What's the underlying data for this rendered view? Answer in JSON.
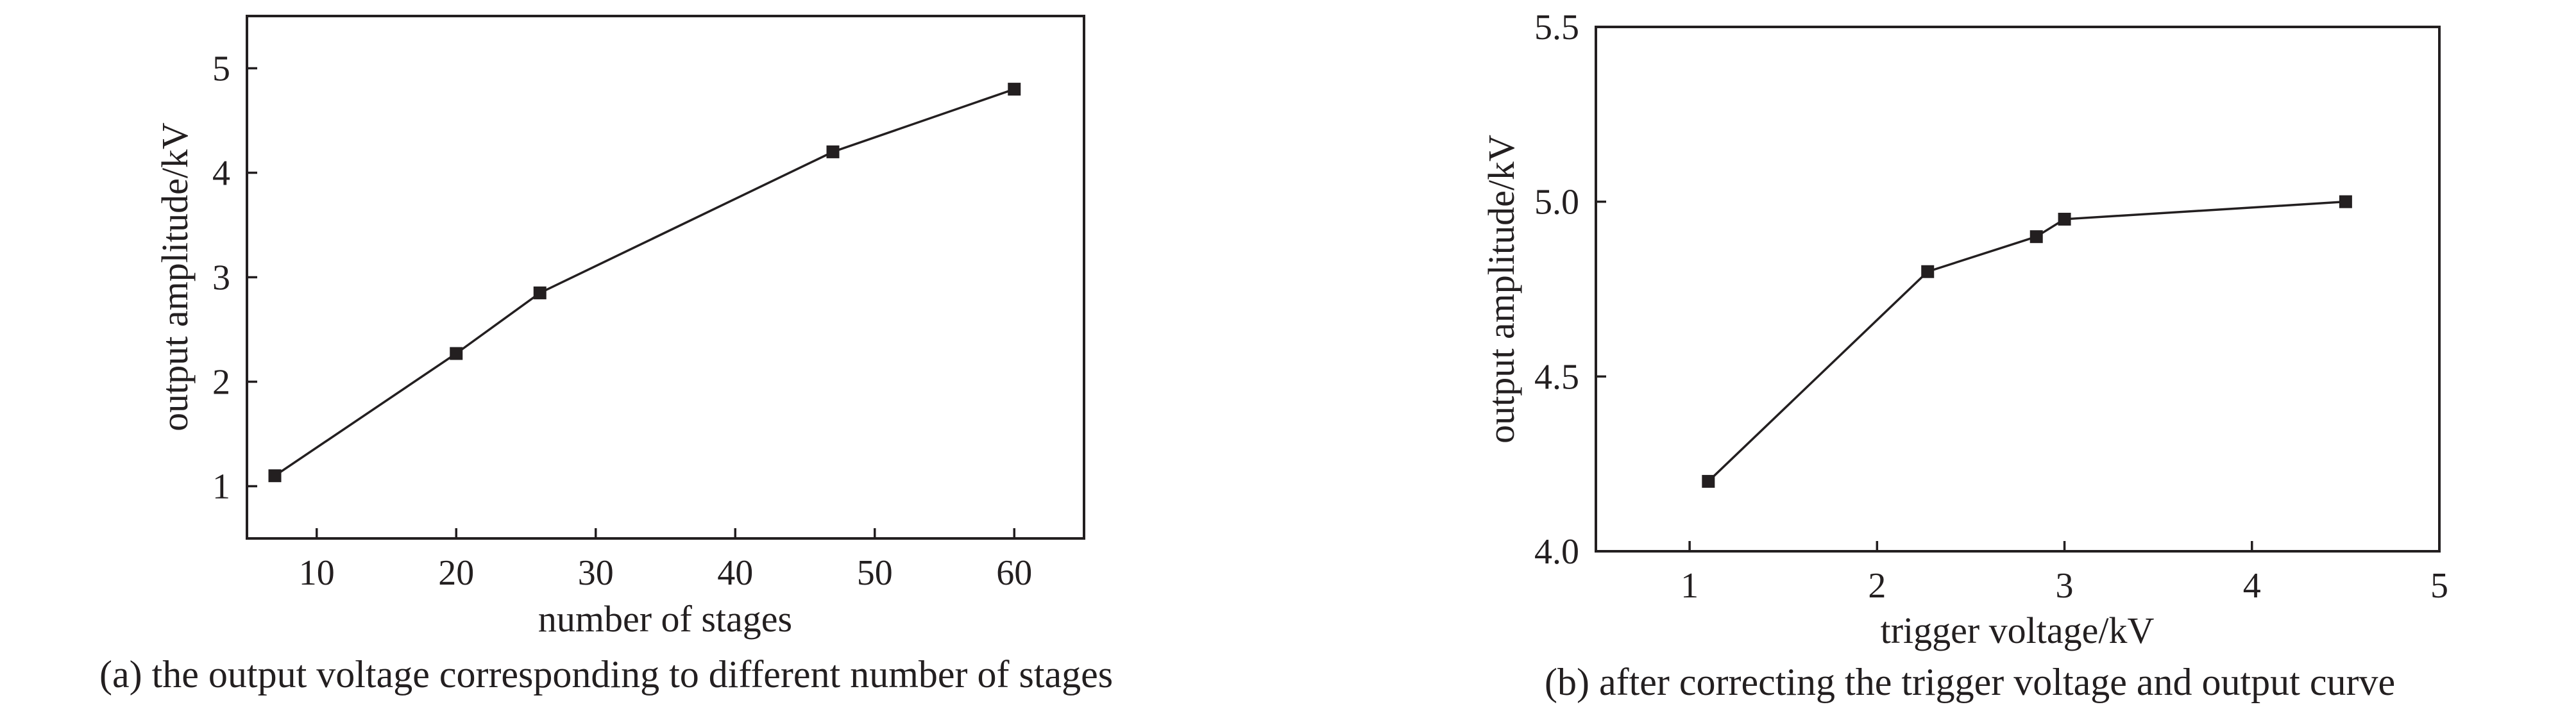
{
  "chart_data": [
    {
      "type": "line",
      "xlabel": "number of stages",
      "ylabel": "output amplitude/kV",
      "xlim": [
        5,
        65
      ],
      "ylim": [
        0.5,
        5.5
      ],
      "xticks": [
        10,
        20,
        30,
        40,
        50,
        60
      ],
      "yticks": [
        1,
        2,
        3,
        4,
        5
      ],
      "xtick_labels": [
        "10",
        "20",
        "30",
        "40",
        "50",
        "60"
      ],
      "ytick_labels": [
        "1",
        "2",
        "3",
        "4",
        "5"
      ],
      "marker": "square",
      "grid": false,
      "series": [
        {
          "x": [
            7,
            20,
            26,
            47,
            60
          ],
          "y": [
            1.1,
            2.27,
            2.85,
            4.2,
            4.8
          ]
        }
      ],
      "caption": "(a) the output voltage corresponding to different number of stages"
    },
    {
      "type": "line",
      "xlabel": "trigger voltage/kV",
      "ylabel": "output amplitude/kV",
      "xlim": [
        0.5,
        5
      ],
      "ylim": [
        4.0,
        5.5
      ],
      "xticks": [
        1,
        2,
        3,
        4,
        5
      ],
      "yticks": [
        4.0,
        4.5,
        5.0,
        5.5
      ],
      "xtick_labels": [
        "1",
        "2",
        "3",
        "4",
        "5"
      ],
      "ytick_labels": [
        "4.0",
        "4.5",
        "5.0",
        "5.5"
      ],
      "marker": "square",
      "grid": false,
      "series": [
        {
          "x": [
            1.1,
            2.27,
            2.85,
            3.0,
            4.5
          ],
          "y": [
            4.2,
            4.8,
            4.9,
            4.95,
            5.0
          ]
        }
      ],
      "caption": "(b) after correcting the trigger voltage and output curve"
    }
  ],
  "colors": {
    "ink": "#231f20",
    "background": "#ffffff"
  }
}
